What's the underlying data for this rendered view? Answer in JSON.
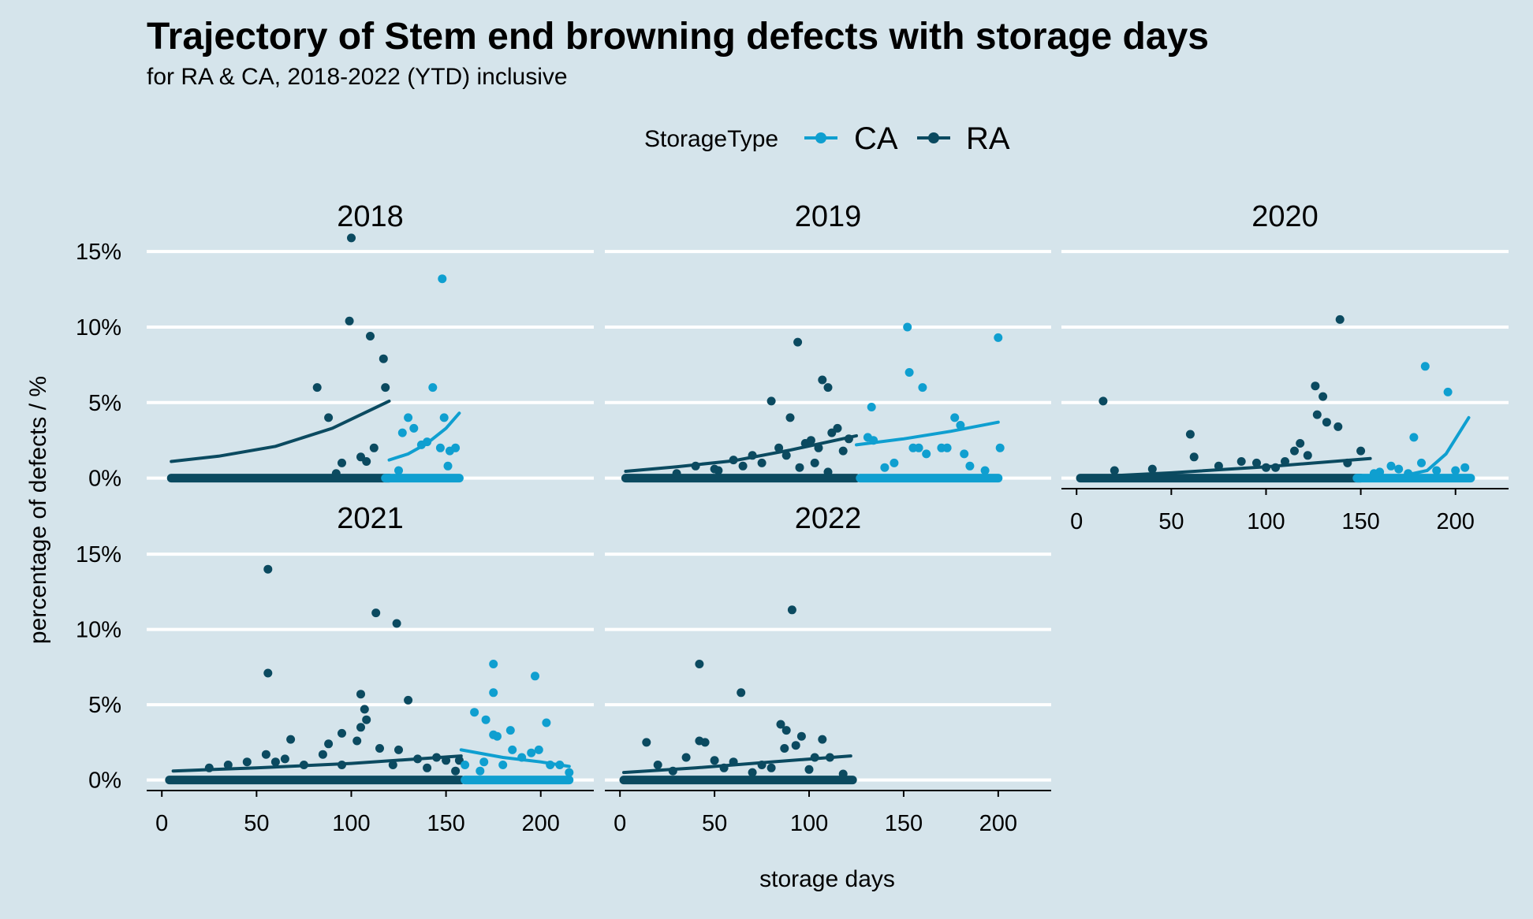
{
  "chart_data": {
    "type": "scatter",
    "title": "Trajectory of Stem end browning defects with storage days",
    "subtitle": "for RA & CA, 2018-2022 (YTD) inclusive",
    "xlabel": "storage days",
    "ylabel": "percentage of defects / %",
    "legend": {
      "title": "StorageType",
      "placement": "top",
      "entries": [
        {
          "name": "CA",
          "color": "#0f9fd0"
        },
        {
          "name": "RA",
          "color": "#0b4a60"
        }
      ]
    },
    "xlim": [
      -8,
      228
    ],
    "ylim": [
      -0.7,
      16
    ],
    "x_ticks": [
      0,
      50,
      100,
      150,
      200
    ],
    "y_ticks": [
      0,
      5,
      10,
      15
    ],
    "y_tick_labels": [
      "0%",
      "5%",
      "10%",
      "15%"
    ],
    "grid": "horizontal major lines",
    "panels": [
      {
        "name": "2018",
        "series": [
          {
            "name": "RA",
            "points": [
              [
                82,
                6.0
              ],
              [
                88,
                4.0
              ],
              [
                99,
                10.4
              ],
              [
                100,
                15.9
              ],
              [
                110,
                9.4
              ],
              [
                117,
                7.9
              ],
              [
                118,
                6.0
              ],
              [
                105,
                1.4
              ],
              [
                112,
                2.0
              ],
              [
                95,
                1.0
              ],
              [
                108,
                1.1
              ],
              [
                92,
                0.3
              ]
            ],
            "zero_range": [
              5,
              120
            ],
            "trend": [
              [
                5,
                1.1
              ],
              [
                30,
                1.45
              ],
              [
                60,
                2.1
              ],
              [
                90,
                3.3
              ],
              [
                120,
                5.1
              ]
            ]
          },
          {
            "name": "CA",
            "points": [
              [
                148,
                13.2
              ],
              [
                143,
                6.0
              ],
              [
                130,
                4.0
              ],
              [
                127,
                3.0
              ],
              [
                133,
                3.3
              ],
              [
                137,
                2.2
              ],
              [
                147,
                2.0
              ],
              [
                149,
                4.0
              ],
              [
                152,
                1.8
              ],
              [
                155,
                2.0
              ],
              [
                140,
                2.4
              ],
              [
                151,
                0.8
              ],
              [
                125,
                0.5
              ]
            ],
            "zero_range": [
              118,
              157
            ],
            "trend": [
              [
                120,
                1.2
              ],
              [
                130,
                1.6
              ],
              [
                140,
                2.3
              ],
              [
                150,
                3.3
              ],
              [
                157,
                4.3
              ]
            ]
          }
        ]
      },
      {
        "name": "2019",
        "series": [
          {
            "name": "RA",
            "points": [
              [
                94,
                9.0
              ],
              [
                107,
                6.5
              ],
              [
                110,
                6.0
              ],
              [
                80,
                5.1
              ],
              [
                90,
                4.0
              ],
              [
                115,
                3.3
              ],
              [
                112,
                3.0
              ],
              [
                105,
                2.0
              ],
              [
                98,
                2.3
              ],
              [
                101,
                2.5
              ],
              [
                88,
                1.5
              ],
              [
                84,
                2.0
              ],
              [
                75,
                1.0
              ],
              [
                70,
                1.5
              ],
              [
                65,
                0.8
              ],
              [
                52,
                0.5
              ],
              [
                40,
                0.8
              ],
              [
                30,
                0.3
              ],
              [
                95,
                0.7
              ],
              [
                103,
                1.0
              ],
              [
                110,
                0.4
              ],
              [
                118,
                1.8
              ],
              [
                121,
                2.6
              ],
              [
                50,
                0.6
              ],
              [
                60,
                1.2
              ]
            ],
            "zero_range": [
              3,
              125
            ],
            "trend": [
              [
                3,
                0.45
              ],
              [
                30,
                0.75
              ],
              [
                60,
                1.15
              ],
              [
                90,
                1.85
              ],
              [
                125,
                2.8
              ]
            ]
          },
          {
            "name": "CA",
            "points": [
              [
                152,
                10.0
              ],
              [
                200,
                9.3
              ],
              [
                153,
                7.0
              ],
              [
                160,
                6.0
              ],
              [
                133,
                4.7
              ],
              [
                177,
                4.0
              ],
              [
                180,
                3.5
              ],
              [
                131,
                2.7
              ],
              [
                134,
                2.5
              ],
              [
                155,
                2.0
              ],
              [
                158,
                2.0
              ],
              [
                162,
                1.6
              ],
              [
                170,
                2.0
              ],
              [
                173,
                2.0
              ],
              [
                182,
                1.6
              ],
              [
                201,
                2.0
              ],
              [
                140,
                0.7
              ],
              [
                145,
                1.0
              ],
              [
                185,
                0.8
              ],
              [
                193,
                0.5
              ]
            ],
            "zero_range": [
              127,
              200
            ],
            "trend": [
              [
                125,
                2.2
              ],
              [
                150,
                2.6
              ],
              [
                175,
                3.1
              ],
              [
                200,
                3.7
              ]
            ]
          }
        ]
      },
      {
        "name": "2020",
        "series": [
          {
            "name": "RA",
            "points": [
              [
                14,
                5.1
              ],
              [
                139,
                10.5
              ],
              [
                126,
                6.1
              ],
              [
                130,
                5.4
              ],
              [
                132,
                3.7
              ],
              [
                138,
                3.4
              ],
              [
                127,
                4.2
              ],
              [
                115,
                1.8
              ],
              [
                118,
                2.3
              ],
              [
                60,
                2.9
              ],
              [
                62,
                1.4
              ],
              [
                95,
                1.0
              ],
              [
                100,
                0.7
              ],
              [
                87,
                1.1
              ],
              [
                150,
                1.8
              ],
              [
                40,
                0.6
              ],
              [
                20,
                0.5
              ],
              [
                75,
                0.8
              ],
              [
                110,
                1.1
              ],
              [
                122,
                1.5
              ],
              [
                105,
                0.7
              ],
              [
                143,
                1.0
              ]
            ],
            "zero_range": [
              2,
              150
            ],
            "trend": [
              [
                2,
                0.05
              ],
              [
                50,
                0.35
              ],
              [
                100,
                0.75
              ],
              [
                155,
                1.3
              ]
            ]
          },
          {
            "name": "CA",
            "points": [
              [
                184,
                7.4
              ],
              [
                196,
                5.7
              ],
              [
                178,
                2.7
              ],
              [
                182,
                1.0
              ],
              [
                190,
                0.5
              ],
              [
                200,
                0.5
              ],
              [
                205,
                0.7
              ],
              [
                170,
                0.6
              ],
              [
                160,
                0.4
              ],
              [
                175,
                0.3
              ],
              [
                166,
                0.8
              ],
              [
                157,
                0.3
              ]
            ],
            "zero_range": [
              148,
              208
            ],
            "trend": [
              [
                148,
                0.1
              ],
              [
                170,
                0.1
              ],
              [
                185,
                0.5
              ],
              [
                195,
                1.6
              ],
              [
                207,
                4.0
              ]
            ]
          }
        ]
      },
      {
        "name": "2021",
        "series": [
          {
            "name": "RA",
            "points": [
              [
                56,
                14.0
              ],
              [
                113,
                11.1
              ],
              [
                124,
                10.4
              ],
              [
                56,
                7.1
              ],
              [
                105,
                5.7
              ],
              [
                107,
                4.7
              ],
              [
                108,
                4.0
              ],
              [
                130,
                5.3
              ],
              [
                105,
                3.5
              ],
              [
                95,
                3.1
              ],
              [
                68,
                2.7
              ],
              [
                88,
                2.4
              ],
              [
                103,
                2.6
              ],
              [
                115,
                2.1
              ],
              [
                125,
                2.0
              ],
              [
                135,
                1.4
              ],
              [
                145,
                1.5
              ],
              [
                150,
                1.3
              ],
              [
                157,
                1.3
              ],
              [
                55,
                1.7
              ],
              [
                60,
                1.2
              ],
              [
                45,
                1.2
              ],
              [
                35,
                1.0
              ],
              [
                25,
                0.8
              ],
              [
                85,
                1.7
              ],
              [
                95,
                1.0
              ],
              [
                65,
                1.4
              ],
              [
                75,
                1.0
              ],
              [
                122,
                1.0
              ],
              [
                140,
                0.8
              ],
              [
                155,
                0.6
              ]
            ],
            "zero_range": [
              4,
              158
            ],
            "trend": [
              [
                6,
                0.6
              ],
              [
                50,
                0.8
              ],
              [
                100,
                1.1
              ],
              [
                158,
                1.6
              ]
            ]
          },
          {
            "name": "CA",
            "points": [
              [
                175,
                7.7
              ],
              [
                197,
                6.9
              ],
              [
                175,
                5.8
              ],
              [
                203,
                3.8
              ],
              [
                165,
                4.5
              ],
              [
                171,
                4.0
              ],
              [
                177,
                2.9
              ],
              [
                184,
                3.3
              ],
              [
                175,
                3.0
              ],
              [
                185,
                2.0
              ],
              [
                195,
                1.8
              ],
              [
                199,
                2.0
              ],
              [
                205,
                1.0
              ],
              [
                210,
                1.0
              ],
              [
                190,
                1.5
              ],
              [
                170,
                1.2
              ],
              [
                180,
                1.0
              ],
              [
                160,
                1.0
              ],
              [
                168,
                0.6
              ],
              [
                215,
                0.5
              ]
            ],
            "zero_range": [
              160,
              215
            ],
            "trend": [
              [
                158,
                2.0
              ],
              [
                180,
                1.5
              ],
              [
                200,
                1.2
              ],
              [
                215,
                0.9
              ]
            ]
          }
        ]
      },
      {
        "name": "2022",
        "series": [
          {
            "name": "RA",
            "points": [
              [
                91,
                11.3
              ],
              [
                42,
                7.7
              ],
              [
                64,
                5.8
              ],
              [
                14,
                2.5
              ],
              [
                42,
                2.6
              ],
              [
                45,
                2.5
              ],
              [
                35,
                1.5
              ],
              [
                50,
                1.3
              ],
              [
                85,
                3.7
              ],
              [
                88,
                3.3
              ],
              [
                96,
                2.9
              ],
              [
                93,
                2.3
              ],
              [
                87,
                2.1
              ],
              [
                107,
                2.7
              ],
              [
                103,
                1.5
              ],
              [
                111,
                1.5
              ],
              [
                20,
                1.0
              ],
              [
                28,
                0.6
              ],
              [
                55,
                0.8
              ],
              [
                70,
                0.5
              ],
              [
                100,
                0.7
              ],
              [
                118,
                0.4
              ],
              [
                75,
                1.0
              ],
              [
                80,
                0.8
              ],
              [
                60,
                1.2
              ]
            ],
            "zero_range": [
              2,
              123
            ],
            "trend": [
              [
                2,
                0.5
              ],
              [
                40,
                0.8
              ],
              [
                80,
                1.2
              ],
              [
                122,
                1.6
              ]
            ]
          }
        ]
      }
    ]
  }
}
